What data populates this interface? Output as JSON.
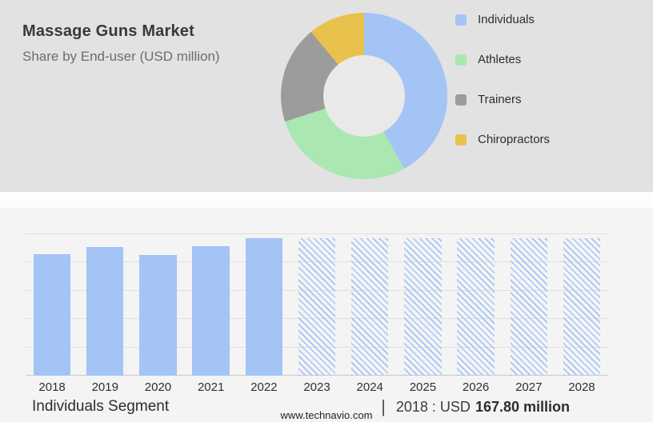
{
  "header": {
    "title": "Massage Guns Market",
    "subtitle": "Share by End-user (USD million)"
  },
  "colors": {
    "header_background": "#e2e2e2",
    "body_background": "#f4f4f4",
    "bar_blue": "#a3c4f5",
    "pie_individuals": "#a3c4f5",
    "pie_athletes": "#abe7b0",
    "pie_trainers": "#9c9c9c",
    "pie_chiropractors": "#e8c24c"
  },
  "chart_data": [
    {
      "type": "pie",
      "title": "Share by End-user (USD million)",
      "labels": [
        "Individuals",
        "Athletes",
        "Trainers",
        "Chiropractors"
      ],
      "values": [
        42,
        28,
        19,
        11
      ],
      "colors": [
        "#a3c4f5",
        "#abe7b0",
        "#9c9c9c",
        "#e8c24c"
      ],
      "donut": true,
      "legend_position": "right"
    },
    {
      "type": "bar",
      "categories": [
        "2018",
        "2019",
        "2020",
        "2021",
        "2022",
        "2023",
        "2024",
        "2025",
        "2026",
        "2027",
        "2028"
      ],
      "values": [
        167.8,
        177.7,
        166.7,
        178.8,
        189.7,
        190,
        190,
        190,
        190,
        190,
        190
      ],
      "forecast_start_index": 5,
      "bar_color": "#a3c4f5",
      "forecast_style": "hatched",
      "xlabel": "",
      "ylabel": "",
      "ylim": [
        0,
        195
      ],
      "grid": true,
      "gridline_count": 6
    }
  ],
  "legend": {
    "items": [
      {
        "label": "Individuals",
        "color": "#a3c4f5"
      },
      {
        "label": "Athletes",
        "color": "#abe7b0"
      },
      {
        "label": "Trainers",
        "color": "#9c9c9c"
      },
      {
        "label": "Chiropractors",
        "color": "#e8c24c"
      }
    ]
  },
  "footer": {
    "segment_label": "Individuals Segment",
    "separator": "|",
    "stat_prefix": "2018 : USD",
    "stat_value": "167.80 million",
    "website": "www.technavio.com"
  }
}
